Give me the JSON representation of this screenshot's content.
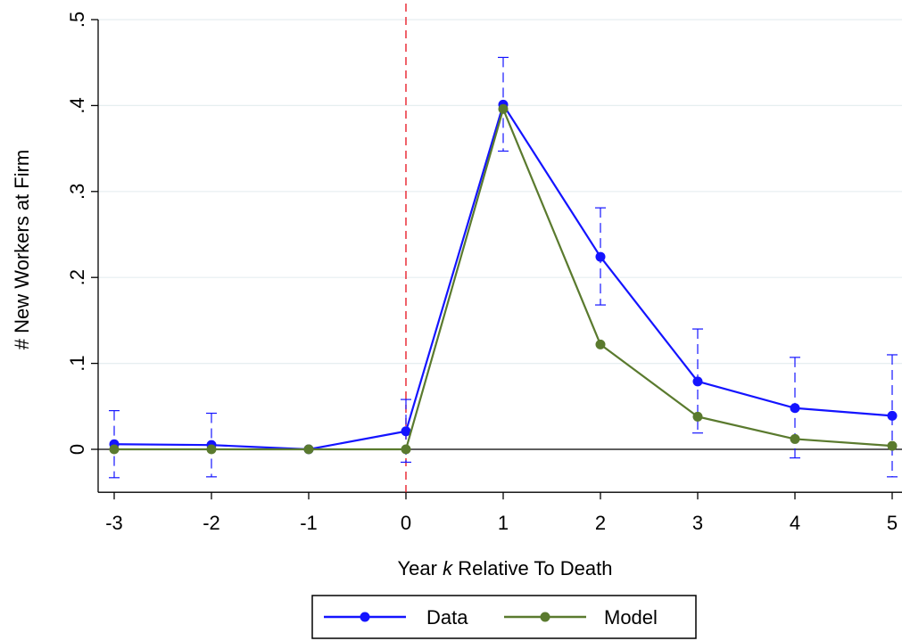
{
  "chart_data": {
    "type": "line",
    "xlabel_parts": [
      "Year ",
      "k",
      " Relative To Death"
    ],
    "ylabel": "# New Workers at Firm",
    "x": [
      -3,
      -2,
      -1,
      0,
      1,
      2,
      3,
      4,
      5
    ],
    "x_tick_labels": [
      "-3",
      "-2",
      "-1",
      "0",
      "1",
      "2",
      "3",
      "4",
      "5"
    ],
    "y_ticks": [
      0,
      0.1,
      0.2,
      0.3,
      0.4,
      0.5
    ],
    "y_tick_labels": [
      "0",
      ".1",
      ".2",
      ".3",
      ".4",
      ".5"
    ],
    "xlim": [
      -3,
      5
    ],
    "ylim": [
      -0.05,
      0.5
    ],
    "grid": true,
    "reference_line": {
      "x": 0,
      "color": "#e8202a",
      "style": "dashed"
    },
    "zero_line": {
      "y": 0
    },
    "legend_position": "bottom",
    "series": [
      {
        "name": "Data",
        "color": "#1414ff",
        "values": [
          0.006,
          0.005,
          0.0,
          0.021,
          0.401,
          0.224,
          0.079,
          0.048,
          0.039
        ],
        "ci_lower": [
          -0.033,
          -0.032,
          null,
          -0.015,
          0.347,
          0.168,
          0.019,
          -0.01,
          -0.032
        ],
        "ci_upper": [
          0.045,
          0.042,
          null,
          0.058,
          0.456,
          0.281,
          0.14,
          0.107,
          0.11
        ]
      },
      {
        "name": "Model",
        "color": "#5a7a2e",
        "values": [
          0.0,
          0.0,
          0.0,
          0.0,
          0.396,
          0.122,
          0.038,
          0.012,
          0.004
        ]
      }
    ]
  }
}
